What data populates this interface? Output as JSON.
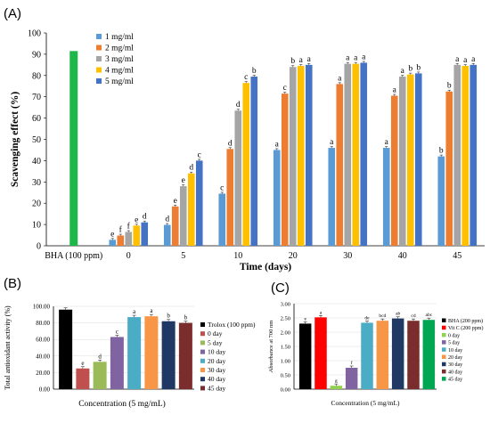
{
  "panels": {
    "a": {
      "label": "(A)"
    },
    "b": {
      "label": "(B)"
    },
    "c": {
      "label": "(C)"
    }
  },
  "chart_data": [
    {
      "id": "A",
      "type": "bar",
      "xlabel": "Time (days)",
      "ylabel": "Scavenging effect (%)",
      "ylim": [
        0,
        100
      ],
      "yticks": [
        0,
        10,
        20,
        30,
        40,
        50,
        60,
        70,
        80,
        90,
        100
      ],
      "legend_placement": "top-left",
      "grid": false,
      "categories": [
        "BHA (100 ppm)",
        "0",
        "5",
        "10",
        "20",
        "30",
        "40",
        "45"
      ],
      "reference": {
        "name": "BHA (100 ppm)",
        "value": 91.5,
        "color": "#1eb84a"
      },
      "series": [
        {
          "name": "1 mg/ml",
          "color": "#5b9bd5",
          "values": [
            null,
            2.8,
            9.8,
            24.5,
            45.0,
            46.0,
            46.0,
            42.0
          ],
          "letters": [
            "",
            "e",
            "d",
            "c",
            "a",
            "a",
            "a",
            "b"
          ]
        },
        {
          "name": "2 mg/ml",
          "color": "#ed7d31",
          "values": [
            null,
            4.8,
            18.5,
            45.5,
            71.5,
            76.0,
            70.5,
            72.5
          ],
          "letters": [
            "",
            "f",
            "e",
            "d",
            "c",
            "a",
            "a",
            "b"
          ]
        },
        {
          "name": "3 mg/ml",
          "color": "#a5a5a5",
          "values": [
            null,
            6.5,
            28.0,
            63.5,
            84.0,
            85.5,
            79.5,
            85.0
          ],
          "letters": [
            "",
            "f",
            "e",
            "d",
            "b",
            "a",
            "a",
            "a"
          ]
        },
        {
          "name": "4 mg/ml",
          "color": "#ffc000",
          "values": [
            null,
            9.5,
            34.0,
            76.5,
            84.5,
            85.5,
            80.5,
            84.5
          ],
          "letters": [
            "",
            "e",
            "d",
            "c",
            "a",
            "a",
            "b",
            "a"
          ]
        },
        {
          "name": "5 mg/ml",
          "color": "#4472c4",
          "values": [
            null,
            11.0,
            40.0,
            79.5,
            85.0,
            86.0,
            81.0,
            85.0
          ],
          "letters": [
            "",
            "d",
            "c",
            "b",
            "a",
            "a",
            "b",
            "a"
          ]
        }
      ]
    },
    {
      "id": "B",
      "type": "bar",
      "xlabel": "Concentration (5 mg/mL)",
      "ylabel": "Total antioxidant activity (%)",
      "ylim": [
        0,
        100
      ],
      "yticks": [
        "0.00",
        "20.00",
        "40.00",
        "60.00",
        "80.00",
        "100.00"
      ],
      "grid": true,
      "legend_placement": "right",
      "series": [
        {
          "name": "Trolox (100 ppm)",
          "color": "#000000",
          "value": 96,
          "letter": ""
        },
        {
          "name": "0 day",
          "color": "#c0504d",
          "value": 25,
          "letter": "e"
        },
        {
          "name": "5 day",
          "color": "#9bbb59",
          "value": 33,
          "letter": "d"
        },
        {
          "name": "10 day",
          "color": "#8064a2",
          "value": 63,
          "letter": "c"
        },
        {
          "name": "20 day",
          "color": "#4bacc6",
          "value": 87,
          "letter": "a"
        },
        {
          "name": "30 day",
          "color": "#f79646",
          "value": 88,
          "letter": "a"
        },
        {
          "name": "40 day",
          "color": "#1f3864",
          "value": 82,
          "letter": "b"
        },
        {
          "name": "45 day",
          "color": "#7b2c2c",
          "value": 80,
          "letter": "b"
        }
      ]
    },
    {
      "id": "C",
      "type": "bar",
      "xlabel": "Concentration (5 mg/mL)",
      "ylabel": "Absorbance at 700 nm",
      "ylim": [
        0,
        3
      ],
      "yticks": [
        "0.00",
        "0.50",
        "1.00",
        "1.50",
        "2.00",
        "2.50",
        "3.00"
      ],
      "grid": true,
      "legend_placement": "right",
      "series": [
        {
          "name": "BHA (200 ppm)",
          "color": "#000000",
          "value": 2.3,
          "letter": "e"
        },
        {
          "name": "Vit C (200 ppm)",
          "color": "#ff0000",
          "value": 2.52,
          "letter": "a"
        },
        {
          "name": "0 day",
          "color": "#92d050",
          "value": 0.12,
          "letter": "g"
        },
        {
          "name": "5 day",
          "color": "#8064a2",
          "value": 0.75,
          "letter": "f"
        },
        {
          "name": "10 day",
          "color": "#4bacc6",
          "value": 2.33,
          "letter": "de"
        },
        {
          "name": "20 day",
          "color": "#f79646",
          "value": 2.4,
          "letter": "bcd"
        },
        {
          "name": "30 day",
          "color": "#1f3864",
          "value": 2.48,
          "letter": "ab"
        },
        {
          "name": "40 day",
          "color": "#7b2c2c",
          "value": 2.4,
          "letter": "cd"
        },
        {
          "name": "45 day",
          "color": "#00a651",
          "value": 2.43,
          "letter": "abc"
        }
      ]
    }
  ]
}
